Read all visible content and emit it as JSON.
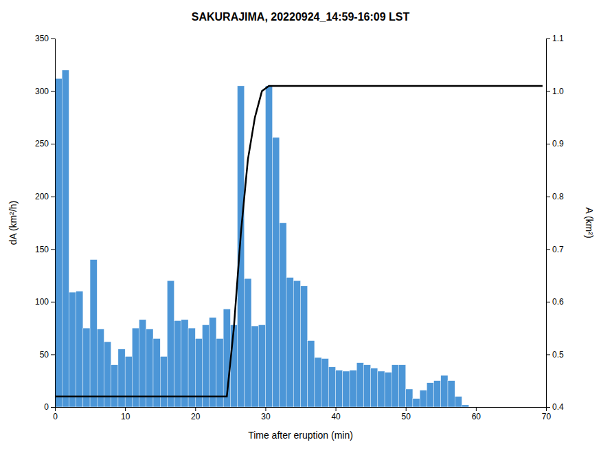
{
  "chart_data": {
    "type": "bar",
    "title": "SAKURAJIMA, 20220924_14:59-16:09 LST",
    "xlabel": "Time after eruption (min)",
    "ylabel": "dA (km²/h)",
    "y2label": "A (km²)",
    "xlim": [
      0,
      70
    ],
    "xticks": [
      0,
      10,
      20,
      30,
      40,
      50,
      60,
      70
    ],
    "ylim": [
      0,
      350
    ],
    "yticks": [
      0,
      50,
      100,
      150,
      200,
      250,
      300,
      350
    ],
    "y2lim": [
      0.4,
      1.1
    ],
    "y2ticks": [
      0.4,
      0.5,
      0.6,
      0.7,
      0.8,
      0.9,
      {
        "value": 1.0,
        "label": "1.0"
      },
      1.1
    ],
    "series": [
      {
        "type": "bar",
        "color": "#4C96D7",
        "x": [
          0.5,
          1.5,
          2.5,
          3.5,
          4.5,
          5.5,
          6.5,
          7.5,
          8.5,
          9.5,
          10.5,
          11.5,
          12.5,
          13.5,
          14.5,
          15.5,
          16.5,
          17.5,
          18.5,
          19.5,
          20.5,
          21.5,
          22.5,
          23.5,
          24.5,
          25.5,
          26.5,
          27.5,
          28.5,
          29.5,
          30.5,
          31.5,
          32.5,
          33.5,
          34.5,
          35.5,
          36.5,
          37.5,
          38.5,
          39.5,
          40.5,
          41.5,
          42.5,
          43.5,
          44.5,
          45.5,
          46.5,
          47.5,
          48.5,
          49.5,
          50.5,
          51.5,
          52.5,
          53.5,
          54.5,
          55.5,
          56.5,
          57.5,
          58.5,
          59.5,
          60.5,
          61.5,
          62.5,
          63.5,
          64.5,
          65.5,
          66.5,
          67.5,
          68.5
        ],
        "values": [
          312,
          320,
          109,
          110,
          75,
          140,
          74,
          62,
          40,
          55,
          48,
          75,
          83,
          74,
          65,
          48,
          120,
          82,
          83,
          75,
          65,
          78,
          85,
          65,
          93,
          78,
          305,
          122,
          77,
          78,
          305,
          256,
          175,
          123,
          120,
          115,
          63,
          47,
          46,
          38,
          35,
          34,
          35,
          42,
          40,
          37,
          34,
          33,
          40,
          40,
          17,
          8,
          16,
          23,
          25,
          30,
          25,
          10,
          2,
          0,
          0,
          0,
          0,
          0,
          0,
          0,
          0,
          0,
          0
        ]
      },
      {
        "type": "line",
        "axis": "y2",
        "color": "#000000",
        "x": [
          0,
          24.5,
          25.5,
          26.5,
          27.5,
          28.5,
          29.5,
          30.5,
          31.5,
          69.5
        ],
        "values": [
          0.42,
          0.42,
          0.55,
          0.73,
          0.87,
          0.95,
          1.0,
          1.01,
          1.01,
          1.01
        ]
      }
    ]
  }
}
